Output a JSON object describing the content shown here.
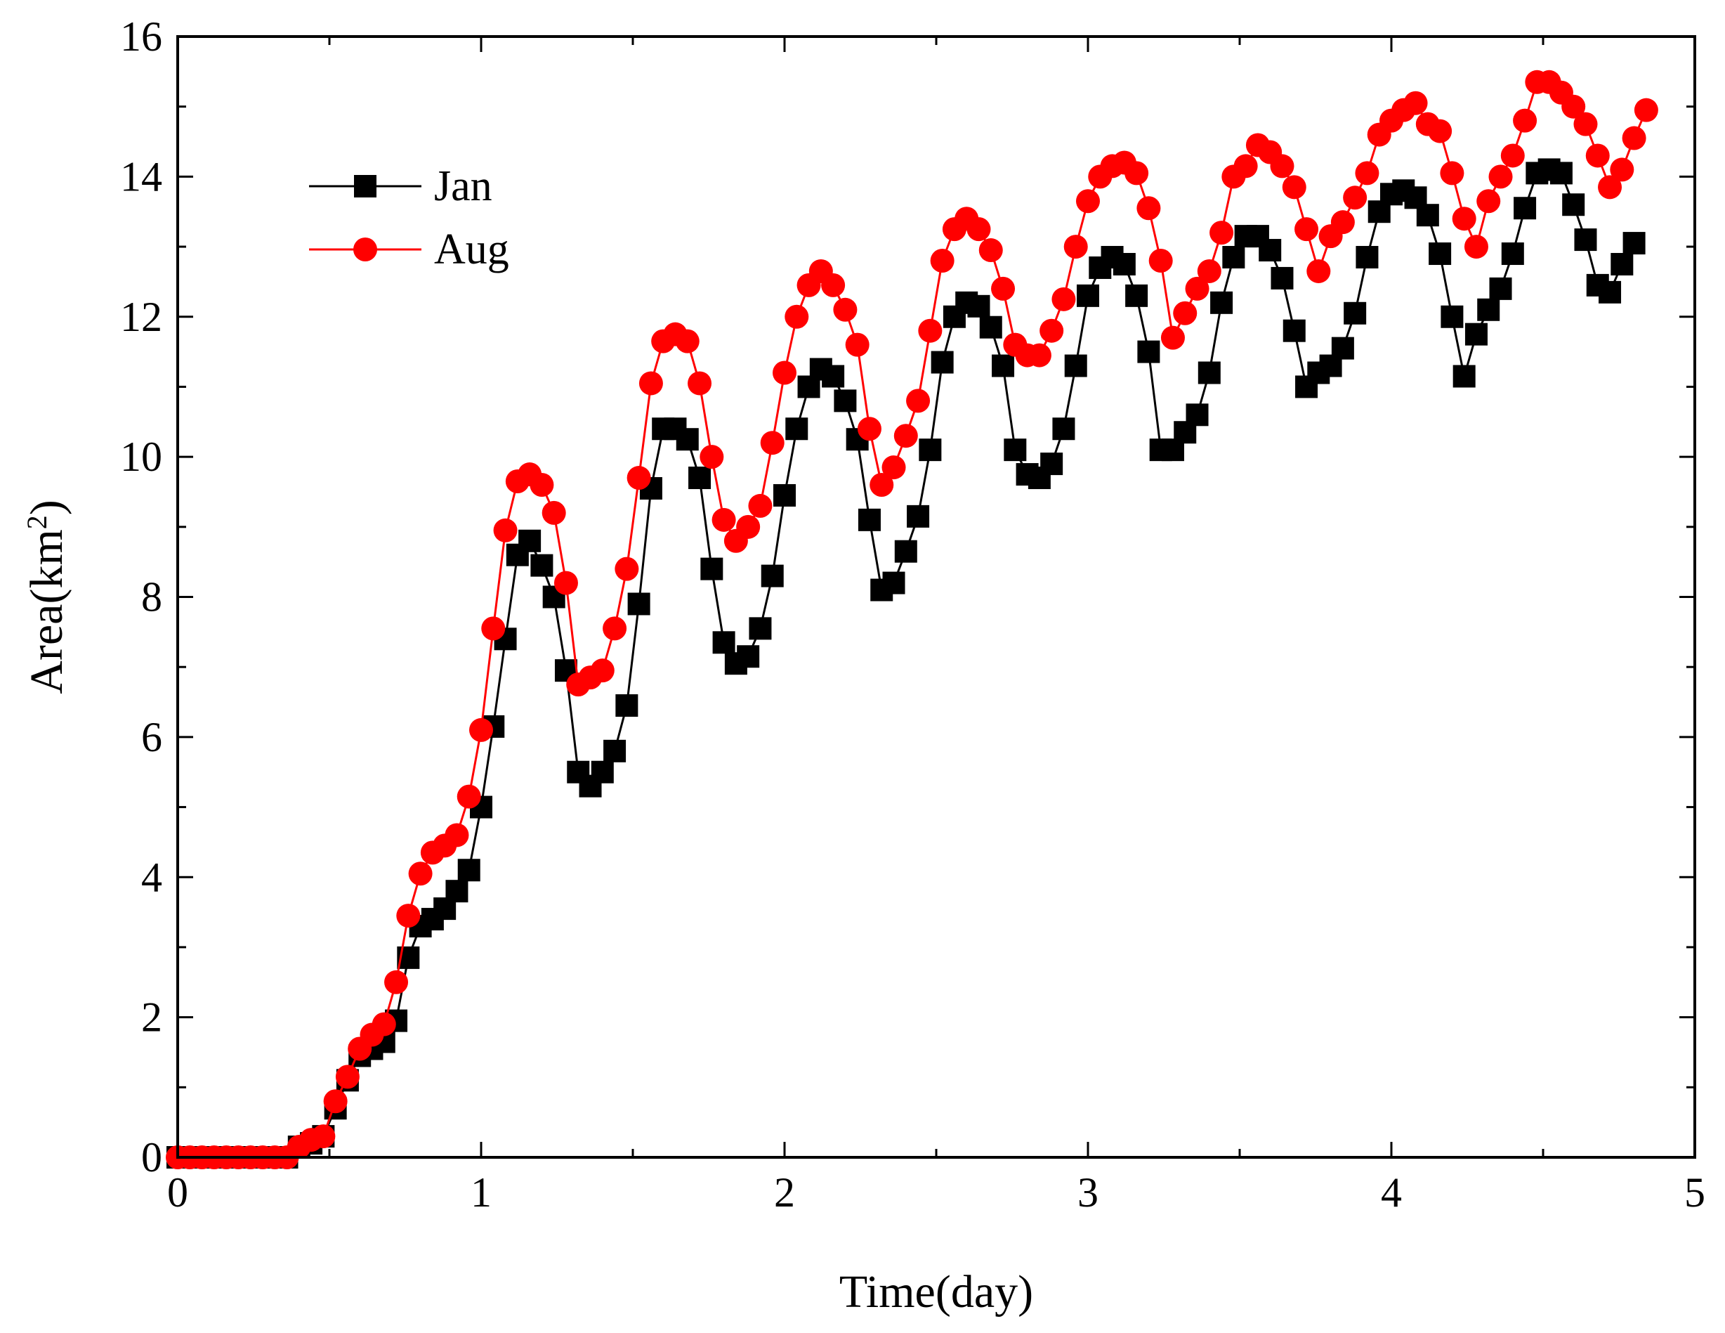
{
  "chart_data": {
    "type": "line",
    "title": "",
    "xlabel": "Time(day)",
    "ylabel_prefix": "Area(km",
    "ylabel_sup": "2",
    "ylabel_suffix": ")",
    "xlim": [
      0,
      5
    ],
    "ylim": [
      0,
      16
    ],
    "xticks": [
      0,
      1,
      2,
      3,
      4,
      5
    ],
    "yticks": [
      0,
      2,
      4,
      6,
      8,
      10,
      12,
      14,
      16
    ],
    "grid": false,
    "legend_position": "top-left",
    "x_step": 0.04,
    "series": [
      {
        "name": "Jan",
        "color": "#000000",
        "marker": "square",
        "values": [
          0,
          0,
          0,
          0,
          0,
          0,
          0,
          0,
          0,
          0,
          0.15,
          0.2,
          0.3,
          0.7,
          1.1,
          1.45,
          1.55,
          1.65,
          1.95,
          2.85,
          3.3,
          3.4,
          3.55,
          3.8,
          4.1,
          5.0,
          6.15,
          7.4,
          8.6,
          8.8,
          8.45,
          8.0,
          6.95,
          5.5,
          5.3,
          5.5,
          5.8,
          6.45,
          7.9,
          9.55,
          10.4,
          10.4,
          10.25,
          9.7,
          8.4,
          7.35,
          7.05,
          7.15,
          7.55,
          8.3,
          9.45,
          10.4,
          11.0,
          11.25,
          11.15,
          10.8,
          10.25,
          9.1,
          8.1,
          8.2,
          8.65,
          9.15,
          10.1,
          11.35,
          12.0,
          12.2,
          12.15,
          11.85,
          11.3,
          10.1,
          9.75,
          9.7,
          9.9,
          10.4,
          11.3,
          12.3,
          12.7,
          12.85,
          12.75,
          12.3,
          11.5,
          10.1,
          10.1,
          10.35,
          10.6,
          11.2,
          12.2,
          12.85,
          13.15,
          13.15,
          12.95,
          12.55,
          11.8,
          11.0,
          11.2,
          11.3,
          11.55,
          12.05,
          12.85,
          13.5,
          13.75,
          13.8,
          13.7,
          13.45,
          12.9,
          12.0,
          11.15,
          11.75,
          12.1,
          12.4,
          12.9,
          13.55,
          14.05,
          14.1,
          14.05,
          13.6,
          13.1,
          12.45,
          12.35,
          12.75,
          13.05
        ]
      },
      {
        "name": "Aug",
        "color": "#ff0000",
        "marker": "circle",
        "values": [
          0,
          0,
          0,
          0,
          0,
          0,
          0,
          0,
          0,
          0,
          0.15,
          0.25,
          0.3,
          0.8,
          1.15,
          1.55,
          1.75,
          1.9,
          2.5,
          3.45,
          4.05,
          4.35,
          4.45,
          4.6,
          5.15,
          6.1,
          7.55,
          8.95,
          9.65,
          9.75,
          9.6,
          9.2,
          8.2,
          6.75,
          6.85,
          6.95,
          7.55,
          8.4,
          9.7,
          11.05,
          11.65,
          11.75,
          11.65,
          11.05,
          10.0,
          9.1,
          8.8,
          9.0,
          9.3,
          10.2,
          11.2,
          12.0,
          12.45,
          12.65,
          12.45,
          12.1,
          11.6,
          10.4,
          9.6,
          9.85,
          10.3,
          10.8,
          11.8,
          12.8,
          13.25,
          13.4,
          13.25,
          12.95,
          12.4,
          11.6,
          11.45,
          11.45,
          11.8,
          12.25,
          13.0,
          13.65,
          14.0,
          14.15,
          14.2,
          14.05,
          13.55,
          12.8,
          11.7,
          12.05,
          12.4,
          12.65,
          13.2,
          14.0,
          14.15,
          14.45,
          14.35,
          14.15,
          13.85,
          13.25,
          12.65,
          13.15,
          13.35,
          13.7,
          14.05,
          14.6,
          14.8,
          14.95,
          15.05,
          14.75,
          14.65,
          14.05,
          13.4,
          13.0,
          13.65,
          14.0,
          14.3,
          14.8,
          15.35,
          15.35,
          15.2,
          15.0,
          14.75,
          14.3,
          13.85,
          14.1,
          14.55,
          14.95
        ]
      }
    ]
  }
}
